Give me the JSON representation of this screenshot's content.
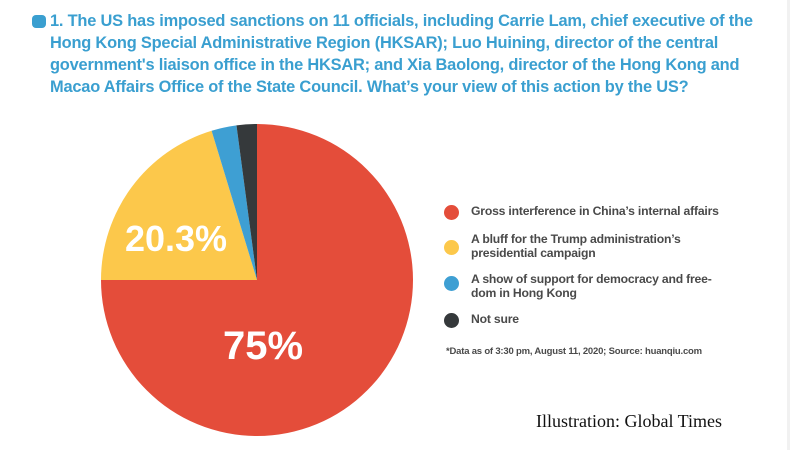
{
  "question": {
    "text": "1. The US has imposed sanctions on 11 officials, including Carrie Lam, chief executive of the Hong Kong Special Administrative Region (HKSAR); Luo Huining, director of the central government's liaison office in the HKSAR; and Xia Baolong, director of the Hong Kong and Macao Affairs Office of the State Council. What’s your view of this action by the US?",
    "accent_color": "#3a9fd0"
  },
  "chart_data": {
    "type": "pie",
    "title": "1. The US has imposed sanctions on 11 officials, including Carrie Lam, chief executive of the Hong Kong Special Administrative Region (HKSAR); Luo Huining, director of the central government's liaison office in the HKSAR; and Xia Baolong, director of the Hong Kong and Macao Affairs Office of the State Council. What’s your view of this action by the US?",
    "categories": [
      "Gross interference in China’s internal affairs",
      "A bluff for the Trump administration’s presidential campaign",
      "A show of support for democracy and freedom in Hong Kong",
      "Not sure"
    ],
    "values": [
      75,
      20.3,
      2.6,
      2.1
    ],
    "colors": [
      "#e44d3a",
      "#fcc84b",
      "#3e9fd3",
      "#35393b"
    ],
    "data_labels": [
      "75%",
      "20.3%",
      "",
      ""
    ],
    "legend_position": "right",
    "start_angle": "12 o'clock, clockwise"
  },
  "labels": {
    "slice_red": "75%",
    "slice_yellow": "20.3%"
  },
  "legend": {
    "items": [
      {
        "label": "Gross interference in China’s internal affairs",
        "color": "#e44d3a"
      },
      {
        "label": "A bluff for the Trump administration’s presidential campaign",
        "color": "#fcc84b"
      },
      {
        "label": "A show of support for democracy and free-dom in Hong Kong",
        "color": "#3e9fd3"
      },
      {
        "label": "Not sure",
        "color": "#35393b"
      }
    ]
  },
  "footnote": "*Data as of 3:30 pm, August 11, 2020; Source: huanqiu.com",
  "credit": "Illustration: Global Times"
}
